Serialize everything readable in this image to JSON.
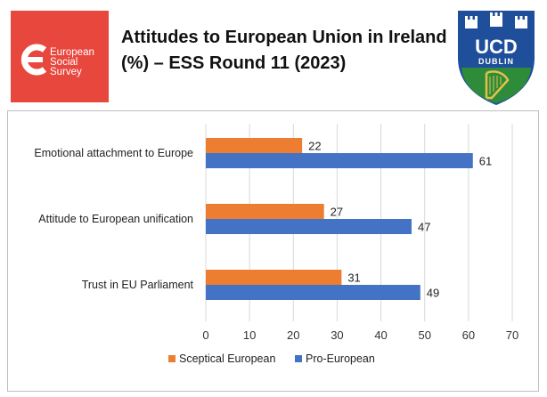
{
  "logos": {
    "ess": {
      "lines": [
        "European",
        "Social",
        "Survey"
      ],
      "bg_color": "#e8473e"
    },
    "ucd": {
      "letters": "UCD",
      "sub": "DUBLIN",
      "blue": "#1f4f9a",
      "green": "#2e8b3a",
      "gold": "#e5c14a"
    }
  },
  "chart_data": {
    "type": "bar",
    "orientation": "horizontal",
    "title": "Attitudes to European Union in Ireland (%) – ESS Round 11 (2023)",
    "categories": [
      "Emotional attachment to Europe",
      "Attitude to European unification",
      "Trust in EU Parliament"
    ],
    "series": [
      {
        "name": "Sceptical European",
        "values": [
          22,
          27,
          31
        ],
        "color": "#ed7d31"
      },
      {
        "name": "Pro-European",
        "values": [
          61,
          47,
          49
        ],
        "color": "#4472c4"
      }
    ],
    "xlim": [
      0,
      70
    ],
    "xticks": [
      "0",
      "10",
      "20",
      "30",
      "40",
      "50",
      "60",
      "70"
    ],
    "grid": true,
    "legend_position": "bottom"
  }
}
